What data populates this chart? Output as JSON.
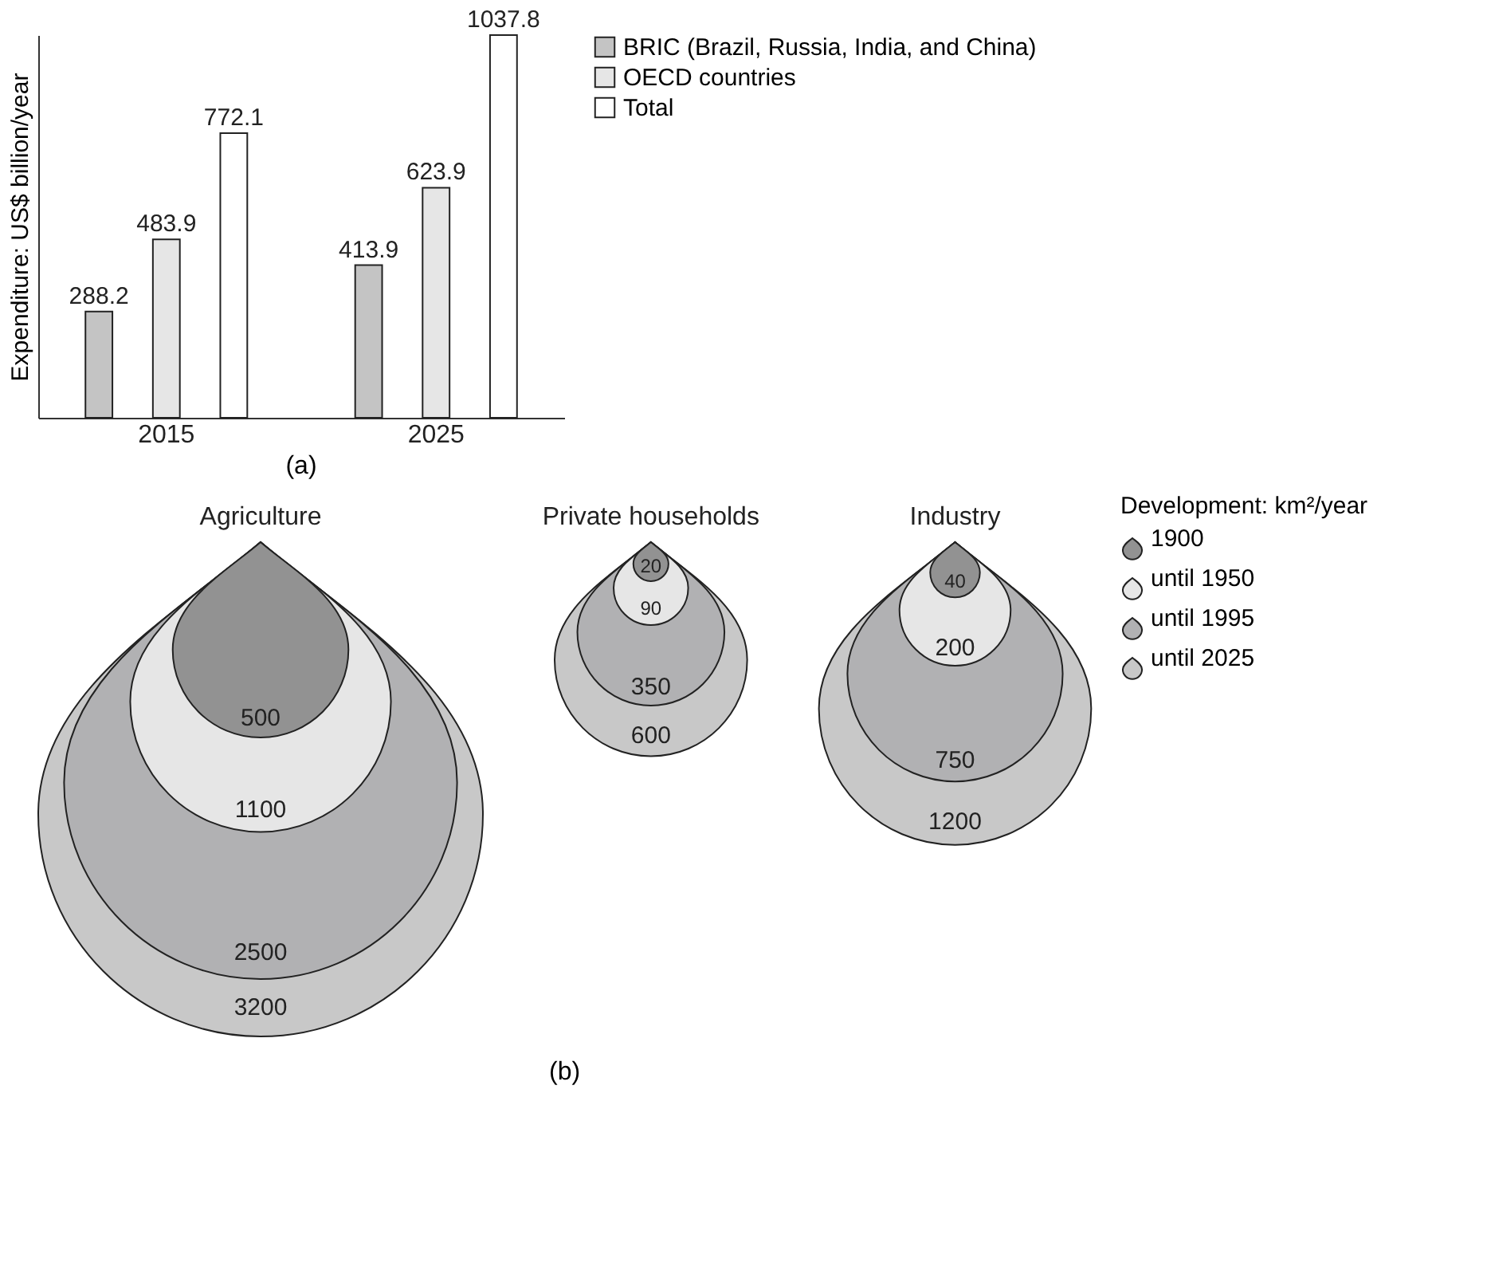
{
  "chart_data": [
    {
      "type": "bar",
      "ylabel": "Expenditure: US$ billion/year",
      "categories": [
        "2015",
        "2025"
      ],
      "series": [
        {
          "name": "BRIC (Brazil, Russia, India, and China)",
          "color": "#c4c4c4",
          "values": [
            288.2,
            413.9
          ]
        },
        {
          "name": "OECD countries",
          "color": "#e6e6e6",
          "values": [
            483.9,
            623.9
          ]
        },
        {
          "name": "Total",
          "color": "#ffffff",
          "values": [
            772.1,
            1037.8
          ]
        }
      ],
      "data_labels": true,
      "legend": "right",
      "tick_labels": "x",
      "annotations": [
        "(a)"
      ]
    },
    {
      "type": "other",
      "legend_title": "Development: km²/year",
      "categories": [
        "Agriculture",
        "Private households",
        "Industry"
      ],
      "series": [
        {
          "name": "1900",
          "color": "#929292",
          "values": [
            500,
            20,
            40
          ]
        },
        {
          "name": "until 1950",
          "color": "#e6e6e6",
          "values": [
            1100,
            90,
            200
          ]
        },
        {
          "name": "until 1995",
          "color": "#b1b1b3",
          "values": [
            2500,
            350,
            750
          ]
        },
        {
          "name": "until 2025",
          "color": "#c8c8c8",
          "values": [
            3200,
            600,
            1200
          ]
        }
      ],
      "data_labels": true,
      "legend": "right",
      "annotations": [
        "(b)"
      ]
    }
  ]
}
